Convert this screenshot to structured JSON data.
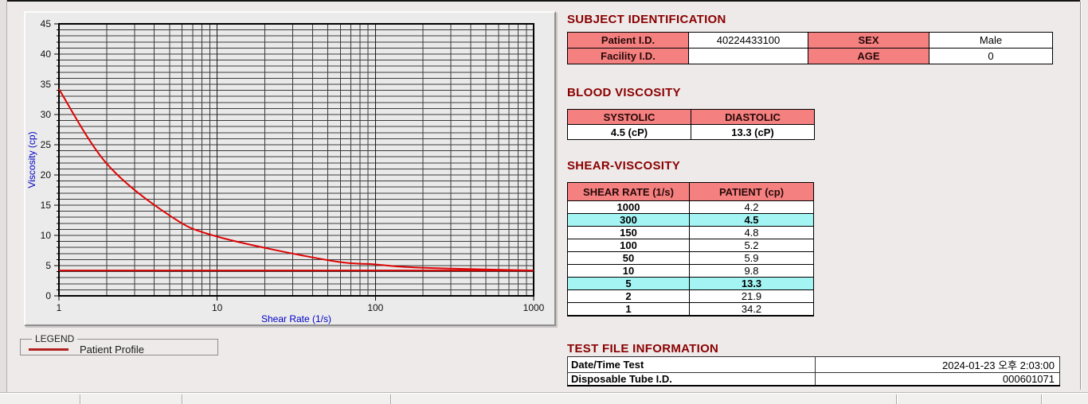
{
  "colors": {
    "section_title": "#8b0000",
    "header_pink": "#f58080",
    "highlight_cyan": "#a4f4f4",
    "curve_red": "#dd0505",
    "baseline_red": "#d40000",
    "axis_label_blue": "#0000c8",
    "legend_line_red": "#b22020"
  },
  "subject_identification": {
    "title": "SUBJECT IDENTIFICATION",
    "rows": [
      {
        "cells": [
          {
            "label": "Patient I.D.",
            "value": "40224433100"
          },
          {
            "label": "SEX",
            "value": "Male"
          }
        ]
      },
      {
        "cells": [
          {
            "label": "Facility I.D.",
            "value": ""
          },
          {
            "label": "AGE",
            "value": "0"
          }
        ]
      }
    ]
  },
  "blood_viscosity": {
    "title": "BLOOD VISCOSITY",
    "headers": [
      "SYSTOLIC",
      "DIASTOLIC"
    ],
    "values": [
      "4.5 (cP)",
      "13.3 (cP)"
    ]
  },
  "shear_viscosity": {
    "title": "SHEAR-VISCOSITY",
    "headers": [
      "SHEAR RATE (1/s)",
      "PATIENT (cp)"
    ],
    "rows": [
      {
        "shear_rate": "1000",
        "patient": "4.2",
        "highlight": false
      },
      {
        "shear_rate": "300",
        "patient": "4.5",
        "highlight": true
      },
      {
        "shear_rate": "150",
        "patient": "4.8",
        "highlight": false
      },
      {
        "shear_rate": "100",
        "patient": "5.2",
        "highlight": false
      },
      {
        "shear_rate": "50",
        "patient": "5.9",
        "highlight": false
      },
      {
        "shear_rate": "10",
        "patient": "9.8",
        "highlight": false
      },
      {
        "shear_rate": "5",
        "patient": "13.3",
        "highlight": true
      },
      {
        "shear_rate": "2",
        "patient": "21.9",
        "highlight": false
      },
      {
        "shear_rate": "1",
        "patient": "34.2",
        "highlight": false
      }
    ]
  },
  "test_file_information": {
    "title": "TEST FILE INFORMATION",
    "rows": [
      {
        "label": "Date/Time Test",
        "value": "2024-01-23  오후 2:03:00"
      },
      {
        "label": "Disposable Tube I.D.",
        "value": "000601071"
      }
    ]
  },
  "legend": {
    "box_label": "LEGEND",
    "series_label": "Patient Profile"
  },
  "chart_data": {
    "type": "line",
    "title": "",
    "xlabel": "Shear Rate (1/s)",
    "ylabel": "Viscosity (cp)",
    "x_scale": "log",
    "xlim": [
      1,
      1000
    ],
    "ylim": [
      0,
      45
    ],
    "x_ticks": [
      1,
      10,
      100,
      1000
    ],
    "y_ticks": [
      0,
      5,
      10,
      15,
      20,
      25,
      30,
      35,
      40,
      45
    ],
    "grid": "on",
    "legend_position": "below-left",
    "series": [
      {
        "name": "Patient Profile",
        "x": [
          1,
          2,
          5,
          10,
          50,
          100,
          150,
          300,
          1000
        ],
        "y": [
          34.2,
          21.9,
          13.3,
          9.8,
          5.9,
          5.2,
          4.8,
          4.5,
          4.2
        ],
        "color": "#dd0505"
      },
      {
        "name": "high-shear-baseline",
        "type": "hline",
        "y": 4.2,
        "color": "#d40000"
      }
    ]
  }
}
